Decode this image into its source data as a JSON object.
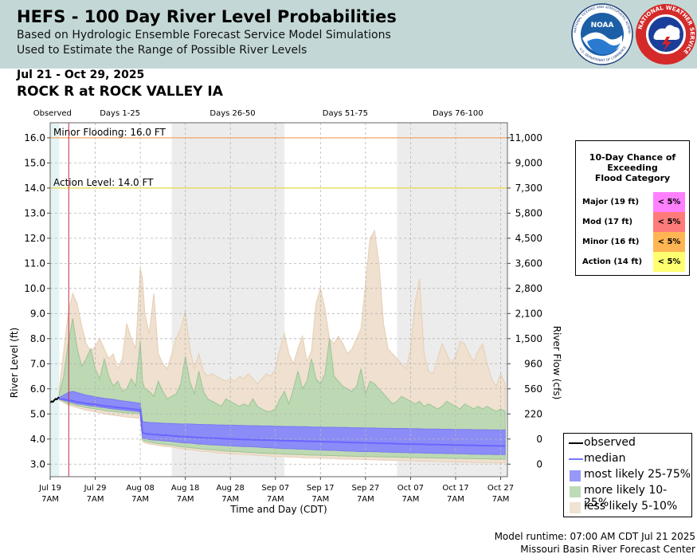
{
  "header": {
    "title": "HEFS - 100 Day River Level Probabilities",
    "subtitle1": "Based on Hydrologic Ensemble Forecast Service Model Simulations",
    "subtitle2": "Used to Estimate the Range of Possible River Levels",
    "noaa_logo_text": "NOAA",
    "noaa_ring_text": "NATIONAL OCEANIC AND ATMOSPHERIC ADMINISTRATION",
    "noaa_ring_bottom": "U.S. DEPARTMENT OF COMMERCE",
    "nws_ring_text": "NATIONAL WEATHER SERVICE"
  },
  "date_range": "Jul 21 - Oct 29, 2025",
  "location": "ROCK R at ROCK VALLEY IA",
  "prob_table": {
    "title_lines": [
      "10-Day Chance of",
      "Exceeding",
      "Flood Category"
    ],
    "rows": [
      {
        "label": "Major (19 ft)",
        "value": "< 5%",
        "color": "#ff80ff"
      },
      {
        "label": "Mod (17 ft)",
        "value": "< 5%",
        "color": "#ff7a7a"
      },
      {
        "label": "Minor (16 ft)",
        "value": "< 5%",
        "color": "#ffb553"
      },
      {
        "label": "Action (14 ft)",
        "value": "< 5%",
        "color": "#ffff70"
      }
    ]
  },
  "legend": {
    "items": [
      {
        "label": "observed",
        "kind": "line",
        "color": "#000000"
      },
      {
        "label": "median",
        "kind": "line",
        "color": "#7a76ff"
      },
      {
        "label": "most likely 25-75%",
        "kind": "box",
        "color": "#8c8cf8"
      },
      {
        "label": "more likely 10-25%",
        "kind": "box",
        "color": "#b8d8b0"
      },
      {
        "label": "less likely 5-10%",
        "kind": "box",
        "color": "#efe0cf"
      }
    ]
  },
  "footer": {
    "runtime": "Model runtime: 07:00 AM CDT Jul 21 2025",
    "center": "Missouri Basin River Forecast Center"
  },
  "chart_data": {
    "type": "area",
    "title": "ROCK R at ROCK VALLEY IA",
    "xlabel": "Time and Day (CDT)",
    "ylabel": "River Level (ft)",
    "y2label": "River Flow (cfs)",
    "ylim": [
      2.5,
      16.6
    ],
    "xlim_days": [
      0,
      101.5
    ],
    "y_ticks": [
      "3.0",
      "4.0",
      "5.0",
      "6.0",
      "7.0",
      "8.0",
      "9.0",
      "10.0",
      "11.0",
      "12.0",
      "13.0",
      "14.0",
      "15.0",
      "16.0"
    ],
    "y2_ticks": [
      {
        "stage": 3.0,
        "label": "0"
      },
      {
        "stage": 4.0,
        "label": "0"
      },
      {
        "stage": 5.0,
        "label": "220"
      },
      {
        "stage": 6.0,
        "label": "560"
      },
      {
        "stage": 7.0,
        "label": "960"
      },
      {
        "stage": 8.0,
        "label": "1,500"
      },
      {
        "stage": 9.0,
        "label": "2,100"
      },
      {
        "stage": 10.0,
        "label": "2,800"
      },
      {
        "stage": 11.0,
        "label": "3,600"
      },
      {
        "stage": 12.0,
        "label": "4,500"
      },
      {
        "stage": 13.0,
        "label": "5,800"
      },
      {
        "stage": 14.0,
        "label": "7,300"
      },
      {
        "stage": 15.0,
        "label": "9,000"
      },
      {
        "stage": 16.0,
        "label": "11,000"
      }
    ],
    "x_ticks": [
      {
        "day": 0,
        "label": "Jul 19",
        "time": "7AM"
      },
      {
        "day": 10,
        "label": "Jul 29",
        "time": "7AM"
      },
      {
        "day": 20,
        "label": "Aug 08",
        "time": "7AM"
      },
      {
        "day": 30,
        "label": "Aug 18",
        "time": "7AM"
      },
      {
        "day": 40,
        "label": "Aug 28",
        "time": "7AM"
      },
      {
        "day": 50,
        "label": "Sep 07",
        "time": "7AM"
      },
      {
        "day": 60,
        "label": "Sep 17",
        "time": "7AM"
      },
      {
        "day": 70,
        "label": "Sep 27",
        "time": "7AM"
      },
      {
        "day": 80,
        "label": "Oct 07",
        "time": "7AM"
      },
      {
        "day": 90,
        "label": "Oct 17",
        "time": "7AM"
      },
      {
        "day": 100,
        "label": "Oct 27",
        "time": "7AM"
      }
    ],
    "period_labels": [
      {
        "label": "Observed",
        "day": 0.5
      },
      {
        "label": "Days 1-25",
        "day": 15.5
      },
      {
        "label": "Days 26-50",
        "day": 40.5
      },
      {
        "label": "Days 51-75",
        "day": 65.5
      },
      {
        "label": "Days 76-100",
        "day": 90.5
      }
    ],
    "shaded_periods": [
      [
        27,
        52
      ],
      [
        77,
        101.5
      ]
    ],
    "forecast_start_day": 2,
    "thresholds": [
      {
        "name": "Minor Flooding",
        "label": "Minor Flooding: 16.0 FT",
        "stage": 16.0,
        "color": "#f5a56a"
      },
      {
        "name": "Action Level",
        "label": "Action Level: 14.0 FT",
        "stage": 14.0,
        "color": "#e8d84a"
      }
    ],
    "observed": {
      "x": [
        0,
        0.3,
        0.6,
        0.9,
        1.2,
        1.5,
        1.8,
        2.0
      ],
      "y": [
        5.45,
        5.5,
        5.48,
        5.55,
        5.6,
        5.58,
        5.65,
        5.65
      ]
    },
    "forecast": {
      "x": [
        2,
        3,
        4,
        5,
        6,
        7,
        8,
        9,
        10,
        11,
        12,
        13,
        14,
        15,
        16,
        17,
        18,
        19,
        20,
        20.5,
        21,
        22,
        23,
        24,
        25,
        26,
        27,
        28,
        29,
        30,
        31,
        32,
        33,
        34,
        35,
        36,
        37,
        38,
        39,
        40,
        41,
        42,
        43,
        44,
        45,
        46,
        47,
        48,
        49,
        50,
        51,
        52,
        53,
        54,
        55,
        56,
        57,
        58,
        59,
        60,
        61,
        62,
        63,
        64,
        65,
        66,
        67,
        68,
        69,
        70,
        71,
        72,
        73,
        74,
        75,
        76,
        77,
        78,
        79,
        80,
        81,
        82,
        83,
        84,
        85,
        86,
        87,
        88,
        89,
        90,
        91,
        92,
        93,
        94,
        95,
        96,
        97,
        98,
        99,
        100,
        101
      ],
      "p05": [
        5.55,
        5.45,
        5.35,
        5.3,
        5.25,
        5.2,
        5.15,
        5.12,
        5.08,
        5.05,
        5.0,
        4.98,
        4.95,
        4.93,
        4.9,
        4.88,
        4.86,
        4.84,
        4.82,
        3.9,
        3.85,
        3.8,
        3.78,
        3.75,
        3.72,
        3.7,
        3.68,
        3.65,
        3.62,
        3.6,
        3.58,
        3.55,
        3.53,
        3.5,
        3.5,
        3.48,
        3.45,
        3.45,
        3.43,
        3.42,
        3.4,
        3.4,
        3.38,
        3.38,
        3.36,
        3.35,
        3.35,
        3.33,
        3.32,
        3.3,
        3.3,
        3.3,
        3.28,
        3.28,
        3.27,
        3.26,
        3.25,
        3.25,
        3.24,
        3.24,
        3.23,
        3.22,
        3.22,
        3.21,
        3.2,
        3.2,
        3.2,
        3.19,
        3.19,
        3.18,
        3.18,
        3.17,
        3.17,
        3.16,
        3.16,
        3.15,
        3.15,
        3.14,
        3.14,
        3.13,
        3.13,
        3.12,
        3.12,
        3.11,
        3.11,
        3.1,
        3.1,
        3.1,
        3.09,
        3.09,
        3.08,
        3.08,
        3.08,
        3.07,
        3.07,
        3.06,
        3.06,
        3.06,
        3.05,
        3.05,
        3.05
      ],
      "p10": [
        5.58,
        5.5,
        5.42,
        5.38,
        5.33,
        5.3,
        5.26,
        5.23,
        5.2,
        5.17,
        5.14,
        5.12,
        5.1,
        5.08,
        5.06,
        5.04,
        5.03,
        5.01,
        5.0,
        3.98,
        3.93,
        3.88,
        3.85,
        3.82,
        3.8,
        3.78,
        3.76,
        3.73,
        3.7,
        3.68,
        3.66,
        3.64,
        3.62,
        3.6,
        3.58,
        3.57,
        3.55,
        3.54,
        3.52,
        3.51,
        3.5,
        3.49,
        3.48,
        3.47,
        3.46,
        3.45,
        3.44,
        3.43,
        3.42,
        3.42,
        3.41,
        3.4,
        3.4,
        3.39,
        3.38,
        3.38,
        3.37,
        3.36,
        3.36,
        3.35,
        3.35,
        3.34,
        3.34,
        3.33,
        3.33,
        3.32,
        3.32,
        3.31,
        3.31,
        3.3,
        3.3,
        3.3,
        3.29,
        3.29,
        3.28,
        3.28,
        3.28,
        3.27,
        3.27,
        3.26,
        3.26,
        3.26,
        3.25,
        3.25,
        3.25,
        3.24,
        3.24,
        3.24,
        3.23,
        3.23,
        3.23,
        3.22,
        3.22,
        3.22,
        3.21,
        3.21,
        3.21,
        3.2,
        3.2,
        3.2,
        3.2
      ],
      "p25": [
        5.6,
        5.55,
        5.5,
        5.45,
        5.4,
        5.38,
        5.35,
        5.32,
        5.3,
        5.27,
        5.25,
        5.22,
        5.2,
        5.18,
        5.16,
        5.14,
        5.12,
        5.1,
        5.08,
        4.05,
        4.02,
        3.98,
        3.96,
        3.95,
        3.93,
        3.92,
        3.9,
        3.88,
        3.86,
        3.85,
        3.84,
        3.82,
        3.8,
        3.8,
        3.78,
        3.77,
        3.76,
        3.75,
        3.74,
        3.73,
        3.72,
        3.71,
        3.7,
        3.7,
        3.69,
        3.68,
        3.67,
        3.66,
        3.65,
        3.64,
        3.63,
        3.62,
        3.62,
        3.61,
        3.6,
        3.6,
        3.59,
        3.58,
        3.57,
        3.56,
        3.56,
        3.55,
        3.55,
        3.54,
        3.53,
        3.52,
        3.52,
        3.51,
        3.5,
        3.5,
        3.5,
        3.49,
        3.49,
        3.48,
        3.48,
        3.47,
        3.47,
        3.46,
        3.46,
        3.45,
        3.45,
        3.45,
        3.44,
        3.44,
        3.43,
        3.43,
        3.43,
        3.42,
        3.42,
        3.41,
        3.41,
        3.41,
        3.4,
        3.4,
        3.4,
        3.39,
        3.39,
        3.39,
        3.38,
        3.38,
        3.38
      ],
      "median": [
        5.6,
        5.58,
        5.55,
        5.52,
        5.48,
        5.45,
        5.42,
        5.4,
        5.38,
        5.35,
        5.32,
        5.3,
        5.28,
        5.26,
        5.24,
        5.22,
        5.2,
        5.18,
        5.16,
        4.25,
        4.22,
        4.2,
        4.18,
        4.17,
        4.15,
        4.15,
        4.13,
        4.12,
        4.1,
        4.1,
        4.08,
        4.07,
        4.06,
        4.05,
        4.04,
        4.04,
        4.03,
        4.02,
        4.01,
        4.0,
        4.0,
        3.99,
        3.98,
        3.98,
        3.97,
        3.97,
        3.96,
        3.96,
        3.95,
        3.95,
        3.94,
        3.94,
        3.93,
        3.93,
        3.92,
        3.92,
        3.91,
        3.91,
        3.9,
        3.9,
        3.89,
        3.89,
        3.88,
        3.88,
        3.87,
        3.87,
        3.86,
        3.86,
        3.85,
        3.85,
        3.84,
        3.84,
        3.83,
        3.83,
        3.82,
        3.82,
        3.81,
        3.81,
        3.8,
        3.8,
        3.8,
        3.79,
        3.79,
        3.78,
        3.78,
        3.78,
        3.77,
        3.77,
        3.76,
        3.76,
        3.76,
        3.75,
        3.75,
        3.75,
        3.74,
        3.74,
        3.74,
        3.73,
        3.73,
        3.73,
        3.72
      ],
      "p75": [
        5.65,
        5.75,
        5.85,
        5.9,
        5.85,
        5.8,
        5.75,
        5.72,
        5.68,
        5.65,
        5.62,
        5.6,
        5.58,
        5.55,
        5.52,
        5.5,
        5.48,
        5.45,
        5.42,
        4.7,
        4.68,
        4.66,
        4.65,
        4.64,
        4.63,
        4.62,
        4.62,
        4.61,
        4.6,
        4.6,
        4.6,
        4.59,
        4.58,
        4.58,
        4.57,
        4.57,
        4.56,
        4.56,
        4.55,
        4.55,
        4.55,
        4.54,
        4.54,
        4.53,
        4.53,
        4.53,
        4.52,
        4.52,
        4.52,
        4.51,
        4.51,
        4.5,
        4.5,
        4.5,
        4.49,
        4.49,
        4.49,
        4.48,
        4.48,
        4.48,
        4.47,
        4.47,
        4.47,
        4.46,
        4.46,
        4.46,
        4.45,
        4.45,
        4.45,
        4.44,
        4.44,
        4.44,
        4.43,
        4.43,
        4.43,
        4.42,
        4.42,
        4.42,
        4.42,
        4.41,
        4.41,
        4.41,
        4.4,
        4.4,
        4.4,
        4.4,
        4.39,
        4.39,
        4.39,
        4.38,
        4.38,
        4.38,
        4.38,
        4.37,
        4.37,
        4.37,
        4.37,
        4.36,
        4.36,
        4.36,
        4.36
      ],
      "p90": [
        5.8,
        6.5,
        7.8,
        8.8,
        7.6,
        6.9,
        7.2,
        7.6,
        6.8,
        6.4,
        7.2,
        6.5,
        6.1,
        6.3,
        5.9,
        6.0,
        6.4,
        6.1,
        7.9,
        6.3,
        6.0,
        5.9,
        5.7,
        6.3,
        5.9,
        5.6,
        5.7,
        5.8,
        6.2,
        7.3,
        6.3,
        5.8,
        6.7,
        5.9,
        5.6,
        5.5,
        5.4,
        5.3,
        5.6,
        5.5,
        5.4,
        5.3,
        5.4,
        5.3,
        5.6,
        5.3,
        5.2,
        5.1,
        5.1,
        5.2,
        5.6,
        5.9,
        5.4,
        6.0,
        6.7,
        6.0,
        6.3,
        7.2,
        6.4,
        6.2,
        6.6,
        8.0,
        6.5,
        6.3,
        6.1,
        6.0,
        5.9,
        6.1,
        6.8,
        5.8,
        6.3,
        6.2,
        6.0,
        5.8,
        5.6,
        5.4,
        5.5,
        5.7,
        5.6,
        5.5,
        5.4,
        5.5,
        5.3,
        5.4,
        5.3,
        5.2,
        5.3,
        5.5,
        5.4,
        5.3,
        5.2,
        5.4,
        5.3,
        5.2,
        5.3,
        5.2,
        5.3,
        5.2,
        5.1,
        5.2,
        5.1
      ],
      "p95": [
        6.0,
        7.5,
        9.0,
        9.8,
        9.4,
        8.5,
        7.8,
        7.5,
        7.7,
        8.0,
        7.6,
        7.2,
        7.4,
        6.8,
        7.2,
        8.6,
        8.0,
        7.6,
        10.8,
        10.4,
        9.0,
        8.2,
        9.8,
        7.4,
        7.0,
        6.8,
        7.4,
        8.0,
        8.4,
        9.1,
        7.6,
        6.8,
        7.4,
        6.7,
        6.5,
        6.6,
        6.5,
        6.4,
        6.3,
        6.4,
        6.3,
        6.5,
        6.4,
        6.6,
        6.4,
        6.2,
        6.4,
        6.6,
        6.5,
        6.8,
        7.6,
        8.2,
        7.4,
        7.0,
        7.6,
        8.1,
        7.1,
        7.5,
        9.4,
        10.0,
        9.2,
        8.0,
        7.8,
        8.1,
        7.8,
        7.4,
        7.6,
        8.0,
        8.4,
        10.2,
        12.0,
        12.3,
        11.0,
        8.6,
        7.6,
        7.4,
        7.2,
        7.0,
        6.8,
        7.6,
        9.4,
        10.4,
        7.4,
        6.7,
        6.6,
        7.2,
        7.8,
        7.4,
        7.0,
        7.3,
        7.9,
        7.8,
        7.4,
        7.1,
        7.5,
        7.8,
        7.0,
        6.4,
        6.1,
        6.6,
        6.2
      ]
    }
  }
}
